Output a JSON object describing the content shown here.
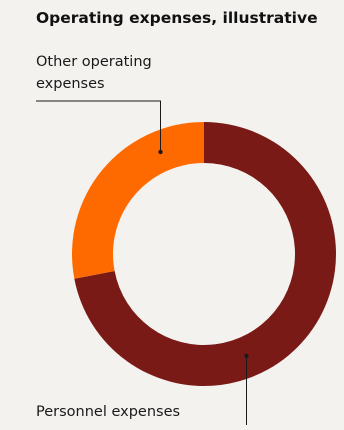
{
  "chart_data": {
    "type": "pie",
    "title": "Operating expenses, illustrative",
    "hole": true,
    "slices": [
      {
        "label": "Personnel expenses",
        "value": 72,
        "color": "#7a1a16"
      },
      {
        "label": "Other operating expenses",
        "value": 28,
        "color": "#ff6a00"
      }
    ]
  },
  "colors": {
    "background": "#f4f2ef",
    "leader_line": "#1a1a1a"
  }
}
